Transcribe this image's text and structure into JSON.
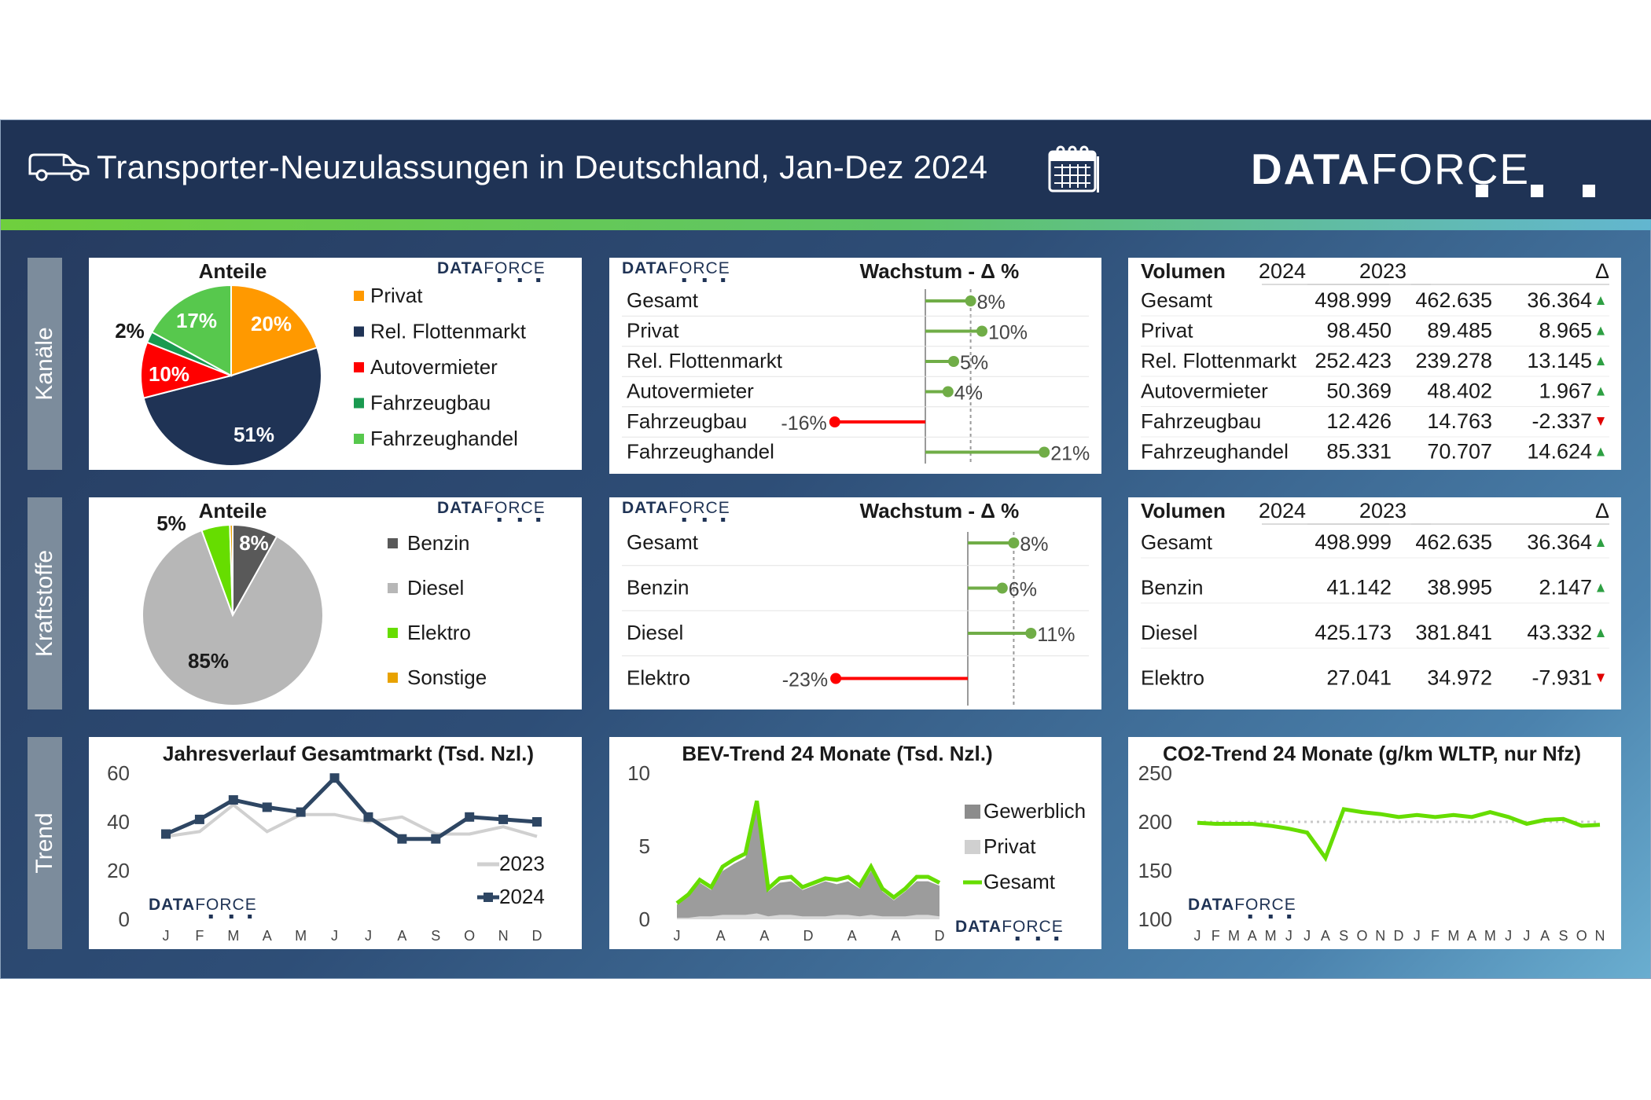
{
  "header": {
    "title": "Transporter-Neuzulassungen in Deutschland, Jan-Dez 2024",
    "logo_bold": "DATA",
    "logo_light": "FORCE",
    "van_icon": "van-icon",
    "calendar_icon": "calendar-icon"
  },
  "brand": {
    "logo_bold": "DATA",
    "logo_light": "FORCE"
  },
  "section_labels": {
    "kanaele": "Kanäle",
    "kraftstoffe": "Kraftstoffe",
    "trend": "Trend"
  },
  "colors": {
    "header_bg": "#1f3355",
    "navy": "#1f3355",
    "orange": "#ff9900",
    "red": "#ff0000",
    "dark_green": "#1a9a50",
    "light_green": "#57c84d",
    "benzin": "#595959",
    "diesel": "#b7b7b7",
    "elektro": "#66dd00",
    "sonstige": "#e8a200",
    "bar_green": "#70ad47",
    "up_arrow": "#2ea043",
    "down_arrow": "#e00000"
  },
  "chart_data": [
    {
      "id": "kanaele-pie",
      "type": "pie",
      "title": "Anteile",
      "categories": [
        "Privat",
        "Rel. Flottenmarkt",
        "Autovermieter",
        "Fahrzeugbau",
        "Fahrzeughandel"
      ],
      "values": [
        20,
        51,
        10,
        2,
        17
      ],
      "labels": [
        "20%",
        "51%",
        "10%",
        "2%",
        "17%"
      ],
      "colors": [
        "#ff9900",
        "#1f3355",
        "#ff0000",
        "#1a9a50",
        "#57c84d"
      ],
      "legend": "right"
    },
    {
      "id": "kanaele-growth",
      "type": "bar",
      "title": "Wachstum - Δ %",
      "categories": [
        "Gesamt",
        "Privat",
        "Rel. Flottenmarkt",
        "Autovermieter",
        "Fahrzeugbau",
        "Fahrzeughandel"
      ],
      "values": [
        8,
        10,
        5,
        4,
        -16,
        21
      ],
      "labels": [
        "8%",
        "10%",
        "5%",
        "4%",
        "-16%",
        "21%"
      ],
      "reference_line": 8
    },
    {
      "id": "kanaele-volume",
      "type": "table",
      "columns": [
        "Volumen",
        "2024",
        "2023",
        "Δ"
      ],
      "rows": [
        [
          "Gesamt",
          "498.999",
          "462.635",
          "36.364"
        ],
        [
          "Privat",
          "98.450",
          "89.485",
          "8.965"
        ],
        [
          "Rel. Flottenmarkt",
          "252.423",
          "239.278",
          "13.145"
        ],
        [
          "Autovermieter",
          "50.369",
          "48.402",
          "1.967"
        ],
        [
          "Fahrzeugbau",
          "12.426",
          "14.763",
          "-2.337"
        ],
        [
          "Fahrzeughandel",
          "85.331",
          "70.707",
          "14.624"
        ]
      ],
      "trend": [
        "up",
        "up",
        "up",
        "up",
        "down",
        "up"
      ]
    },
    {
      "id": "kraftstoffe-pie",
      "type": "pie",
      "title": "Anteile",
      "categories": [
        "Benzin",
        "Diesel",
        "Elektro",
        "Sonstige"
      ],
      "values": [
        8,
        85,
        5,
        0.5
      ],
      "labels": [
        "8%",
        "85%",
        "5%",
        ""
      ],
      "colors": [
        "#595959",
        "#b7b7b7",
        "#66dd00",
        "#e8a200"
      ],
      "legend": "right"
    },
    {
      "id": "kraftstoffe-growth",
      "type": "bar",
      "title": "Wachstum - Δ %",
      "categories": [
        "Gesamt",
        "Benzin",
        "Diesel",
        "Elektro"
      ],
      "values": [
        8,
        6,
        11,
        -23
      ],
      "labels": [
        "8%",
        "6%",
        "11%",
        "-23%"
      ],
      "reference_line": 8
    },
    {
      "id": "kraftstoffe-volume",
      "type": "table",
      "columns": [
        "Volumen",
        "2024",
        "2023",
        "Δ"
      ],
      "rows": [
        [
          "Gesamt",
          "498.999",
          "462.635",
          "36.364"
        ],
        [
          "Benzin",
          "41.142",
          "38.995",
          "2.147"
        ],
        [
          "Diesel",
          "425.173",
          "381.841",
          "43.332"
        ],
        [
          "Elektro",
          "27.041",
          "34.972",
          "-7.931"
        ]
      ],
      "trend": [
        "up",
        "up",
        "up",
        "down"
      ]
    },
    {
      "id": "trend-jahresverlauf",
      "type": "line",
      "title": "Jahresverlauf Gesamtmarkt (Tsd. Nzl.)",
      "categories": [
        "J",
        "F",
        "M",
        "A",
        "M",
        "J",
        "J",
        "A",
        "S",
        "O",
        "N",
        "D"
      ],
      "series": [
        {
          "name": "2023",
          "values": [
            34,
            36,
            47,
            36,
            43,
            43,
            40,
            42,
            35,
            35,
            38,
            34
          ]
        },
        {
          "name": "2024",
          "values": [
            35,
            41,
            49,
            46,
            44,
            58,
            42,
            33,
            33,
            42,
            41,
            40
          ]
        }
      ],
      "ylim": [
        0,
        60
      ],
      "yticks": [
        "0",
        "20",
        "40",
        "60"
      ],
      "legend": "bottom-right"
    },
    {
      "id": "trend-bev",
      "type": "area",
      "title": "BEV-Trend 24 Monate (Tsd. Nzl.)",
      "categories": [
        "J",
        "F",
        "M",
        "A",
        "M",
        "J",
        "J",
        "A",
        "S",
        "O",
        "N",
        "D",
        "J",
        "F",
        "M",
        "A",
        "M",
        "J",
        "J",
        "A",
        "S",
        "O",
        "N",
        "D"
      ],
      "x_tick_labels": [
        "J",
        "A",
        "A",
        "D",
        "A",
        "A",
        "D"
      ],
      "series": [
        {
          "name": "Gewerblich",
          "values": [
            1.0,
            1.6,
            2.5,
            2.0,
            3.3,
            3.8,
            4.2,
            7.7,
            1.9,
            2.5,
            2.6,
            2.0,
            2.3,
            2.6,
            2.4,
            2.6,
            2.1,
            3.3,
            1.9,
            1.3,
            1.9,
            2.6,
            2.6,
            2.3
          ]
        },
        {
          "name": "Privat",
          "values": [
            0.1,
            0.1,
            0.2,
            0.2,
            0.3,
            0.3,
            0.3,
            0.4,
            0.2,
            0.3,
            0.3,
            0.2,
            0.2,
            0.2,
            0.3,
            0.3,
            0.2,
            0.3,
            0.2,
            0.2,
            0.2,
            0.3,
            0.3,
            0.2
          ]
        },
        {
          "name": "Gesamt",
          "values": [
            1.1,
            1.7,
            2.7,
            2.2,
            3.6,
            4.1,
            4.5,
            8.1,
            2.1,
            2.8,
            2.9,
            2.2,
            2.5,
            2.8,
            2.7,
            2.9,
            2.3,
            3.6,
            2.1,
            1.5,
            2.1,
            2.9,
            2.9,
            2.5
          ]
        }
      ],
      "ylim": [
        0,
        10
      ],
      "yticks": [
        "0",
        "5",
        "10"
      ],
      "legend": "right"
    },
    {
      "id": "trend-co2",
      "type": "line",
      "title": "CO2-Trend 24 Monate (g/km WLTP, nur Nfz)",
      "categories": [
        "J",
        "F",
        "M",
        "A",
        "M",
        "J",
        "J",
        "A",
        "S",
        "O",
        "N",
        "D",
        "J",
        "F",
        "M",
        "A",
        "M",
        "J",
        "J",
        "A",
        "S",
        "O",
        "N"
      ],
      "series": [
        {
          "name": "",
          "values": [
            199,
            198,
            198,
            198,
            196,
            193,
            189,
            163,
            213,
            210,
            208,
            205,
            207,
            205,
            207,
            205,
            210,
            205,
            198,
            202,
            203,
            196,
            197
          ]
        }
      ],
      "reference_line": 200,
      "ylim": [
        100,
        250
      ],
      "yticks": [
        "100",
        "150",
        "200",
        "250"
      ]
    }
  ]
}
